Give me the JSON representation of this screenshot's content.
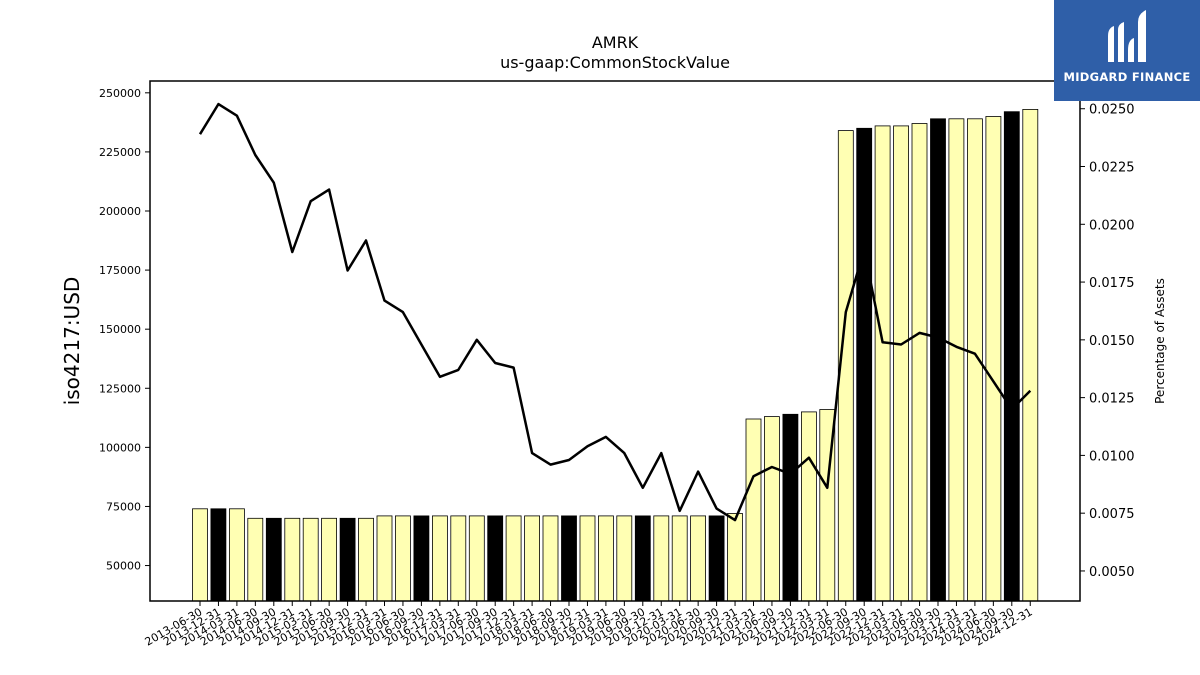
{
  "chart_data": {
    "type": "bar",
    "title": "AMRK",
    "subtitle": "us-gaap:CommonStockValue",
    "ylabel": "iso4217:USD",
    "y2label": "Percentage of Assets",
    "ylim": [
      35000,
      255000
    ],
    "y2lim": [
      0.0037,
      0.0262
    ],
    "yticks": [
      50000,
      75000,
      100000,
      125000,
      150000,
      175000,
      200000,
      225000,
      250000
    ],
    "y2ticks": [
      "0.0050",
      "0.0075",
      "0.0100",
      "0.0125",
      "0.0150",
      "0.0175",
      "0.0200",
      "0.0225",
      "0.0250"
    ],
    "categories": [
      "2013-06-30",
      "2013-12-31",
      "2014-03-31",
      "2014-06-30",
      "2014-09-30",
      "2014-12-31",
      "2015-03-31",
      "2015-06-30",
      "2015-09-30",
      "2015-12-31",
      "2016-03-31",
      "2016-06-30",
      "2016-09-30",
      "2016-12-31",
      "2017-03-31",
      "2017-06-30",
      "2017-09-30",
      "2017-12-31",
      "2018-03-31",
      "2018-06-30",
      "2018-09-30",
      "2018-12-31",
      "2019-03-31",
      "2019-06-30",
      "2019-09-30",
      "2019-12-31",
      "2020-03-31",
      "2020-06-30",
      "2020-09-30",
      "2020-12-31",
      "2021-03-31",
      "2021-06-30",
      "2021-09-30",
      "2021-12-31",
      "2022-03-31",
      "2022-06-30",
      "2022-09-30",
      "2022-12-31",
      "2023-03-31",
      "2023-06-30",
      "2023-09-30",
      "2023-12-31",
      "2024-03-31",
      "2024-06-30",
      "2024-09-30",
      "2024-12-31"
    ],
    "series": [
      {
        "values": [
          74000,
          74000,
          74000,
          70000,
          70000,
          70000,
          70000,
          70000,
          70000,
          70000,
          71000,
          71000,
          71000,
          71000,
          71000,
          71000,
          71000,
          71000,
          71000,
          71000,
          71000,
          71000,
          71000,
          71000,
          71000,
          71000,
          71000,
          71000,
          71000,
          72000,
          112000,
          113000,
          114000,
          115000,
          116000,
          234000,
          235000,
          236000,
          236000,
          237000,
          239000,
          239000,
          239000,
          240000,
          242000,
          243000
        ],
        "highlight": [
          false,
          true,
          false,
          false,
          true,
          false,
          false,
          false,
          true,
          false,
          false,
          false,
          true,
          false,
          false,
          false,
          true,
          false,
          false,
          false,
          true,
          false,
          false,
          false,
          true,
          false,
          false,
          false,
          true,
          false,
          false,
          false,
          true,
          false,
          false,
          false,
          true,
          false,
          false,
          false,
          true,
          false,
          false,
          false,
          true,
          false
        ],
        "colors": {
          "normal": "#ffffb3",
          "highlight": "#000000"
        }
      },
      {
        "axis": "right",
        "values": [
          0.0239,
          0.0252,
          0.0247,
          0.023,
          0.0218,
          0.0188,
          0.021,
          0.0215,
          0.018,
          0.0193,
          0.0167,
          0.0162,
          0.0148,
          0.0134,
          0.0137,
          0.015,
          0.014,
          0.0138,
          0.0101,
          0.0096,
          0.0098,
          0.0104,
          0.0108,
          0.0101,
          0.0086,
          0.0101,
          0.0076,
          0.0093,
          0.0077,
          0.0072,
          0.0091,
          0.0095,
          0.0092,
          0.0099,
          0.0086,
          0.0162,
          0.0189,
          0.0149,
          0.0148,
          0.0153,
          0.0151,
          0.0147,
          0.0144,
          0.0132,
          0.012,
          0.0128
        ],
        "color": "#000000"
      }
    ],
    "grid": false,
    "legend": "none"
  },
  "logo": {
    "text": "MIDGARD FINANCE",
    "bg": "#2f5fa8"
  }
}
